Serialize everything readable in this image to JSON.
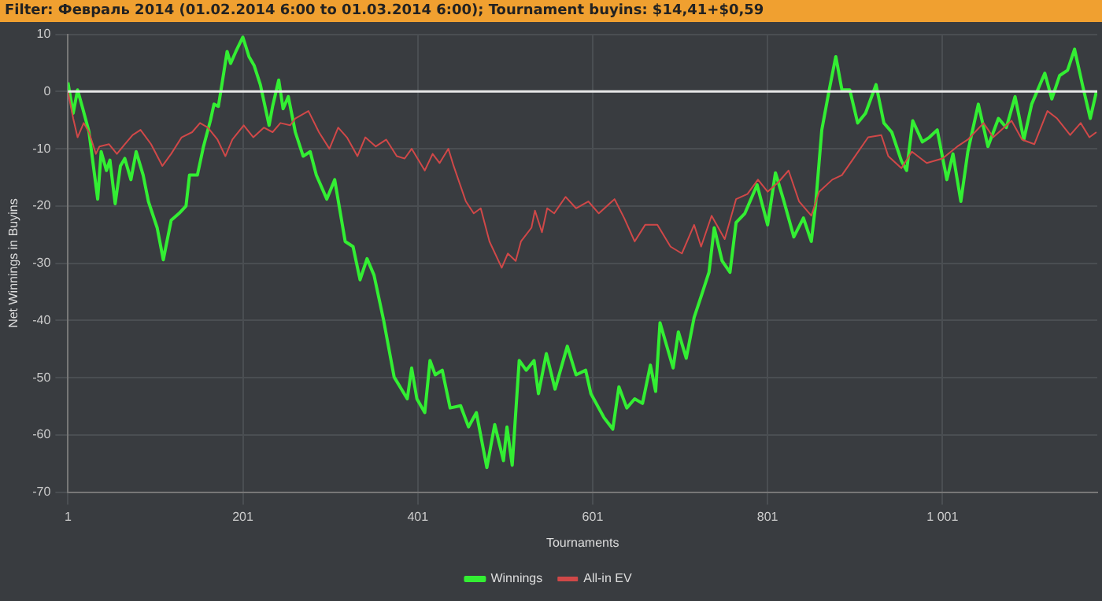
{
  "chart_data": {
    "type": "line",
    "title": "Filter: Февраль 2014 (01.02.2014 6:00 to 01.03.2014 6:00); Tournament buyins: $14,41+$0,59",
    "xlabel": "Tournaments",
    "ylabel": "Net Winnings in Buyins",
    "xlim": [
      1,
      1178
    ],
    "xticks": [
      1,
      201,
      401,
      601,
      801,
      {
        "value": 1001,
        "label": "1 001"
      }
    ],
    "ylim": [
      -70,
      10
    ],
    "yticks": [
      -70,
      -60,
      -50,
      -40,
      -30,
      -20,
      -10,
      0,
      10
    ],
    "grid": true,
    "legend": "bottom",
    "marker": "none",
    "line_style": "solid",
    "ref_lines": [
      {
        "axis": "y",
        "value": 0,
        "color": "#e8e8e8"
      }
    ],
    "series": [
      {
        "name": "Winnings",
        "color": "#33ee33",
        "x": [
          1,
          7,
          12,
          18,
          25,
          35,
          39,
          45,
          49,
          55,
          61,
          66,
          73,
          79,
          87,
          93,
          103,
          110,
          119,
          128,
          136,
          140,
          149,
          156,
          164,
          168,
          173,
          177,
          183,
          187,
          193,
          201,
          208,
          214,
          221,
          231,
          235,
          242,
          247,
          253,
          261,
          270,
          278,
          285,
          297,
          306,
          318,
          327,
          335,
          343,
          351,
          362,
          374,
          389,
          394,
          400,
          409,
          415,
          421,
          429,
          438,
          450,
          459,
          468,
          480,
          489,
          499,
          503,
          509,
          517,
          525,
          534,
          539,
          548,
          558,
          572,
          582,
          593,
          599,
          614,
          624,
          631,
          640,
          649,
          658,
          667,
          673,
          678,
          693,
          699,
          708,
          717,
          725,
          734,
          740,
          749,
          758,
          765,
          775,
          789,
          801,
          810,
          819,
          831,
          842,
          851,
          856,
          863,
          871,
          879,
          886,
          895,
          904,
          913,
          925,
          934,
          943,
          954,
          960,
          967,
          978,
          986,
          995,
          1006,
          1013,
          1022,
          1030,
          1042,
          1053,
          1065,
          1074,
          1084,
          1094,
          1103,
          1118,
          1126,
          1135,
          1144,
          1152,
          1161,
          1170,
          1177
        ],
        "values": [
          1.6,
          -3.8,
          0.3,
          -3,
          -7,
          -18.8,
          -10.5,
          -13.8,
          -12,
          -19.6,
          -13,
          -11.7,
          -15.4,
          -10.5,
          -14.6,
          -19.2,
          -23.8,
          -29.4,
          -22.5,
          -21.3,
          -20,
          -14.6,
          -14.6,
          -9.6,
          -5,
          -2.2,
          -2.6,
          1.2,
          7,
          4.9,
          7,
          9.5,
          6.1,
          4.5,
          1.2,
          -5.9,
          -2.6,
          2,
          -3,
          -0.9,
          -7.1,
          -11.3,
          -10.5,
          -14.6,
          -18.8,
          -15.4,
          -26.2,
          -27.1,
          -32.9,
          -29.2,
          -32.1,
          -40,
          -49.9,
          -53.7,
          -48.3,
          -53.7,
          -56.1,
          -47,
          -49.5,
          -48.7,
          -55.3,
          -54.9,
          -58.6,
          -56.1,
          -65.7,
          -58.2,
          -64.5,
          -58.6,
          -65.3,
          -47,
          -48.7,
          -47,
          -52.8,
          -45.8,
          -52,
          -44.5,
          -49.5,
          -48.7,
          -52.8,
          -57,
          -59,
          -51.6,
          -55.3,
          -53.7,
          -54.5,
          -47.8,
          -52.4,
          -40.4,
          -48.3,
          -42,
          -46.6,
          -39.5,
          -35.8,
          -31.6,
          -23.8,
          -29.6,
          -31.6,
          -22.9,
          -21.3,
          -16.3,
          -23.3,
          -14.2,
          -18.8,
          -25.4,
          -22.1,
          -26.2,
          -19.6,
          -6.7,
          -0.1,
          6.1,
          0.3,
          0.3,
          -5.5,
          -3.8,
          1.2,
          -5.5,
          -7.1,
          -12.1,
          -13.8,
          -5.1,
          -8.8,
          -8,
          -6.7,
          -15.4,
          -10.9,
          -19.2,
          -10.5,
          -2.2,
          -9.6,
          -4.7,
          -6.3,
          -0.9,
          -8.4,
          -2.2,
          3.2,
          -1.3,
          2.8,
          3.7,
          7.4,
          1.2,
          -4.7,
          0
        ]
      },
      {
        "name": "All-in EV",
        "color": "#d04848",
        "x": [
          1,
          7,
          12,
          19,
          25,
          33,
          37,
          48,
          57,
          66,
          75,
          84,
          96,
          109,
          119,
          131,
          143,
          152,
          161,
          172,
          181,
          189,
          202,
          213,
          225,
          235,
          244,
          255,
          261,
          276,
          288,
          300,
          310,
          320,
          332,
          341,
          353,
          365,
          377,
          386,
          394,
          409,
          418,
          426,
          436,
          442,
          456,
          465,
          473,
          483,
          497,
          504,
          513,
          519,
          531,
          535,
          543,
          549,
          557,
          570,
          582,
          596,
          608,
          626,
          637,
          649,
          661,
          675,
          690,
          703,
          717,
          725,
          737,
          752,
          765,
          778,
          790,
          801,
          813,
          825,
          837,
          851,
          860,
          875,
          886,
          901,
          916,
          931,
          939,
          954,
          966,
          983,
          1001,
          1018,
          1030,
          1048,
          1059,
          1080,
          1092,
          1106,
          1121,
          1132,
          1147,
          1159,
          1169,
          1177
        ],
        "values": [
          0,
          -4.7,
          -8,
          -5.5,
          -7.1,
          -10.9,
          -9.6,
          -9.2,
          -10.9,
          -9.2,
          -7.6,
          -6.7,
          -9.2,
          -13,
          -10.9,
          -8,
          -7.1,
          -5.5,
          -6.3,
          -8.4,
          -11.3,
          -8.4,
          -5.9,
          -8,
          -6.3,
          -7.1,
          -5.5,
          -5.9,
          -4.7,
          -3.4,
          -7.1,
          -10,
          -6.3,
          -8,
          -11.3,
          -8,
          -9.6,
          -8.4,
          -11.3,
          -11.7,
          -10,
          -13.8,
          -10.9,
          -12.5,
          -10,
          -13,
          -19.2,
          -21.3,
          -20.4,
          -26.2,
          -30.8,
          -28.3,
          -29.6,
          -26.2,
          -23.8,
          -20.8,
          -24.6,
          -20.4,
          -21.3,
          -18.4,
          -20.4,
          -19.2,
          -21.3,
          -18.8,
          -22.1,
          -26.2,
          -23.3,
          -23.3,
          -27.1,
          -28.3,
          -23.3,
          -27.1,
          -21.7,
          -25.8,
          -18.8,
          -17.9,
          -15.4,
          -17.5,
          -15.9,
          -13.8,
          -19.2,
          -21.7,
          -17.5,
          -15.4,
          -14.6,
          -11.3,
          -8,
          -7.6,
          -11.3,
          -13.4,
          -10.5,
          -12.5,
          -11.7,
          -9.6,
          -8.4,
          -5.5,
          -8,
          -5.1,
          -8.4,
          -9.2,
          -3.4,
          -4.7,
          -7.6,
          -5.5,
          -8,
          -7.1
        ]
      }
    ]
  }
}
